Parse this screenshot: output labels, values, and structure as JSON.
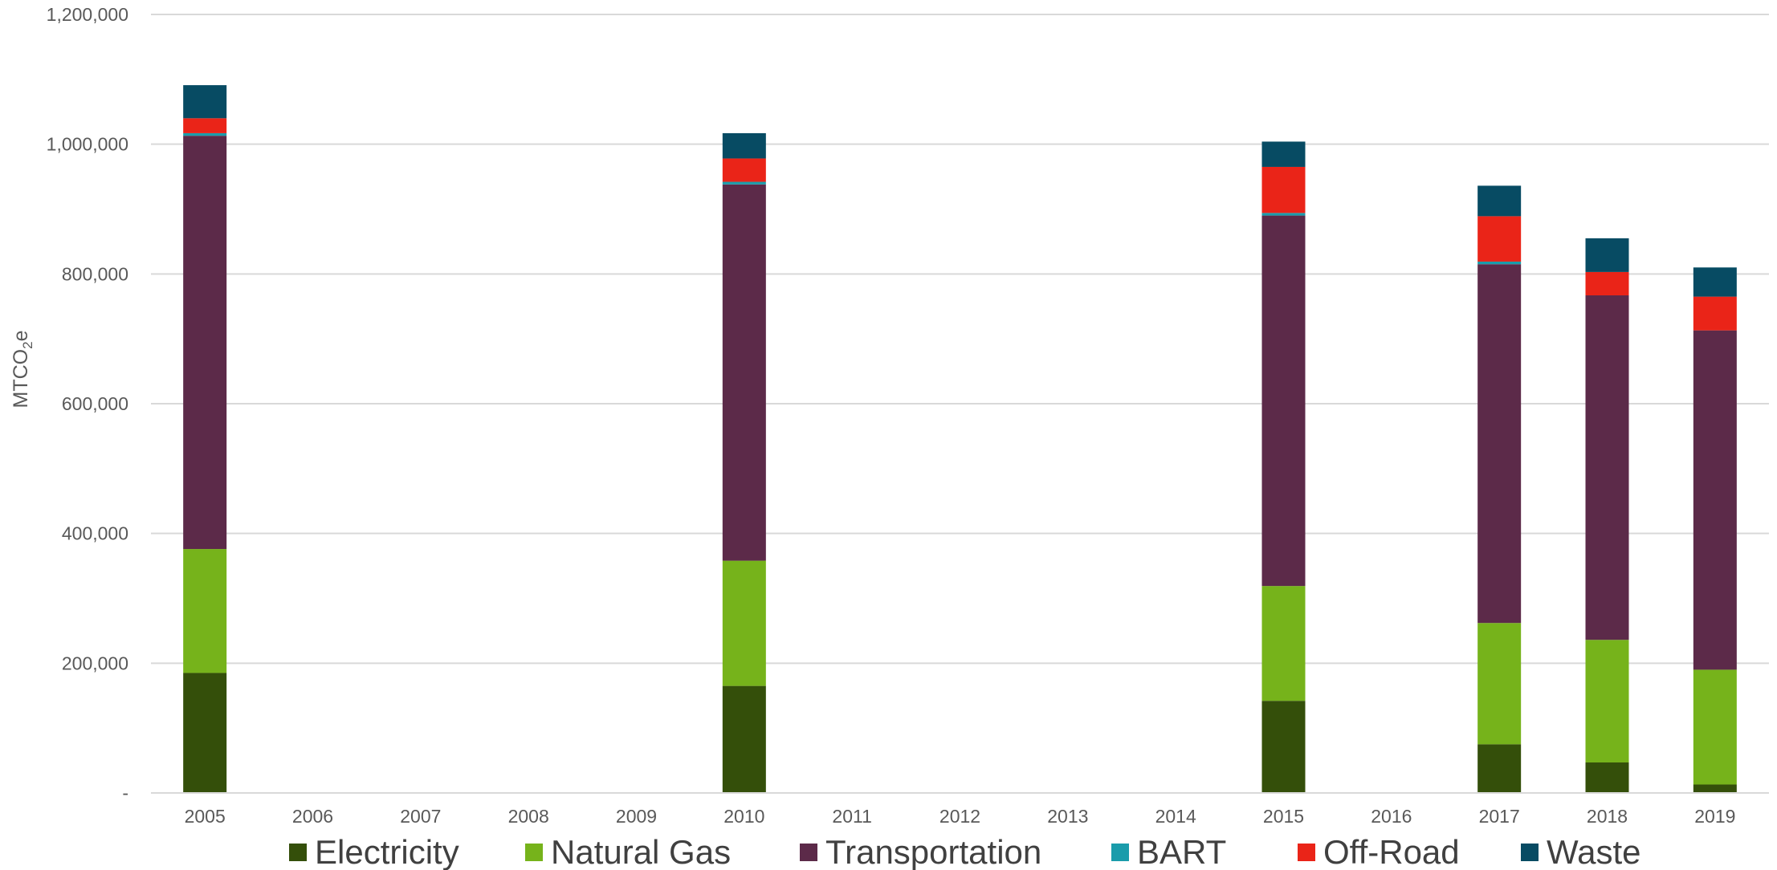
{
  "chart_data": {
    "type": "bar",
    "stacked": true,
    "ylabel": "MTCO",
    "ylabel_subscript": "2",
    "ylabel_suffix": "e",
    "ylim": [
      0,
      1200000
    ],
    "yticks": [
      0,
      200000,
      400000,
      600000,
      800000,
      1000000,
      1200000
    ],
    "ytick_labels": [
      "-",
      "200,000",
      "400,000",
      "600,000",
      "800,000",
      "1,000,000",
      "1,200,000"
    ],
    "grid": true,
    "legend_position": "bottom",
    "categories": [
      "2005",
      "2006",
      "2007",
      "2008",
      "2009",
      "2010",
      "2011",
      "2012",
      "2013",
      "2014",
      "2015",
      "2016",
      "2017",
      "2018",
      "2019"
    ],
    "series": [
      {
        "name": "Electricity",
        "color": "#344f0a",
        "values": [
          185000,
          0,
          0,
          0,
          0,
          165000,
          0,
          0,
          0,
          0,
          142000,
          0,
          75000,
          47000,
          13000
        ]
      },
      {
        "name": "Natural Gas",
        "color": "#76b31b",
        "values": [
          191000,
          0,
          0,
          0,
          0,
          193000,
          0,
          0,
          0,
          0,
          177000,
          0,
          187000,
          189000,
          177000
        ]
      },
      {
        "name": "Transportation",
        "color": "#5c2a49",
        "values": [
          637000,
          0,
          0,
          0,
          0,
          580000,
          0,
          0,
          0,
          0,
          571000,
          0,
          553000,
          531000,
          523000
        ]
      },
      {
        "name": "BART",
        "color": "#1a9cab",
        "values": [
          4000,
          0,
          0,
          0,
          0,
          4000,
          0,
          0,
          0,
          0,
          4000,
          0,
          4000,
          0,
          0
        ]
      },
      {
        "name": "Off-Road",
        "color": "#ea2418",
        "values": [
          23000,
          0,
          0,
          0,
          0,
          36000,
          0,
          0,
          0,
          0,
          71000,
          0,
          70000,
          36000,
          52000
        ]
      },
      {
        "name": "Waste",
        "color": "#074b63",
        "values": [
          51000,
          0,
          0,
          0,
          0,
          39000,
          0,
          0,
          0,
          0,
          39000,
          0,
          47000,
          52000,
          45000
        ]
      }
    ]
  }
}
